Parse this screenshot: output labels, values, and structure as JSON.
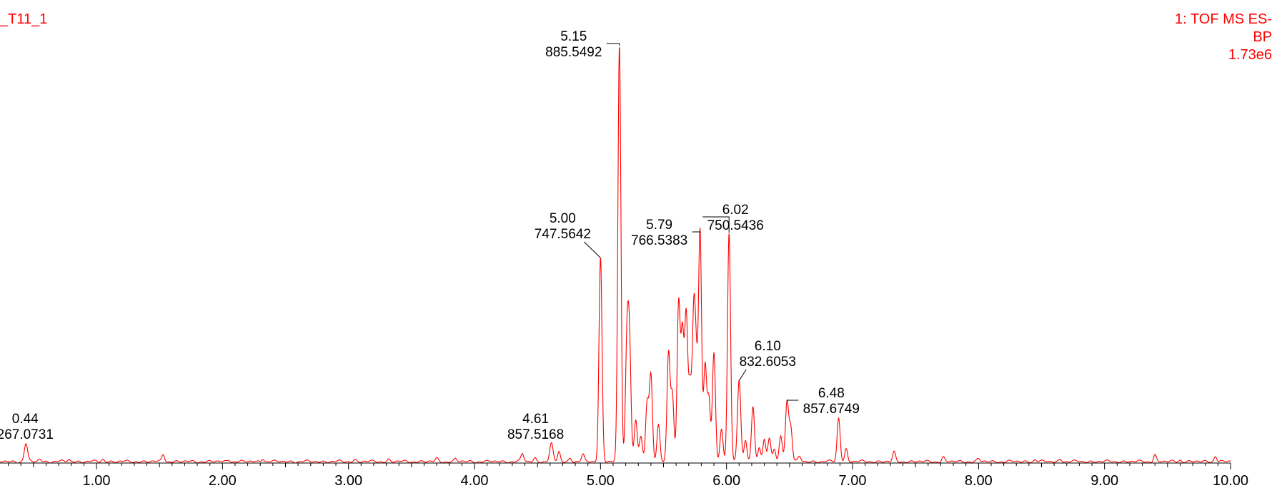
{
  "colors": {
    "trace": "#ff0000",
    "axis": "#000000",
    "header": "#ff0000"
  },
  "header": {
    "sample_name": "_T11_1",
    "detector": "1: TOF MS ES-",
    "mode": "BP",
    "intensity": "1.73e6"
  },
  "chart_data": {
    "type": "line",
    "xlim": [
      0,
      10.0
    ],
    "ylim": [
      0,
      100
    ],
    "x_ticks": [
      "1.00",
      "2.00",
      "3.00",
      "4.00",
      "5.00",
      "6.00",
      "7.00",
      "8.00",
      "9.00",
      "10.00"
    ],
    "peaks": [
      {
        "rt": "0.44",
        "mz": "267.0731",
        "x": 0.44,
        "y": 4.3
      },
      {
        "rt": "4.61",
        "mz": "857.5168",
        "x": 4.61,
        "y": 4.2
      },
      {
        "rt": "5.00",
        "mz": "747.5642",
        "x": 5.0,
        "y": 49
      },
      {
        "rt": "5.15",
        "mz": "885.5492",
        "x": 5.15,
        "y": 100
      },
      {
        "rt": "5.79",
        "mz": "766.5383",
        "x": 5.79,
        "y": 55
      },
      {
        "rt": "6.02",
        "mz": "750.5436",
        "x": 6.02,
        "y": 55
      },
      {
        "rt": "6.10",
        "mz": "832.6053",
        "x": 6.1,
        "y": 19.5
      },
      {
        "rt": "6.48",
        "mz": "857.6749",
        "x": 6.48,
        "y": 14.5
      }
    ],
    "unlabeled_peaks": [
      {
        "x": 0.55,
        "y": 0.6
      },
      {
        "x": 0.78,
        "y": 0.5
      },
      {
        "x": 1.05,
        "y": 0.6
      },
      {
        "x": 1.53,
        "y": 1.8
      },
      {
        "x": 2.05,
        "y": 0.5
      },
      {
        "x": 2.32,
        "y": 0.8
      },
      {
        "x": 3.05,
        "y": 0.5
      },
      {
        "x": 3.32,
        "y": 0.5
      },
      {
        "x": 3.7,
        "y": 0.7
      },
      {
        "x": 3.85,
        "y": 0.6
      },
      {
        "x": 4.38,
        "y": 1.9
      },
      {
        "x": 4.48,
        "y": 0.8
      },
      {
        "x": 4.67,
        "y": 2.4
      },
      {
        "x": 4.76,
        "y": 0.8
      },
      {
        "x": 4.86,
        "y": 1.6
      },
      {
        "x": 5.21,
        "y": 28
      },
      {
        "x": 5.23,
        "y": 27
      },
      {
        "x": 5.28,
        "y": 10
      },
      {
        "x": 5.32,
        "y": 6
      },
      {
        "x": 5.37,
        "y": 14
      },
      {
        "x": 5.4,
        "y": 20.5
      },
      {
        "x": 5.46,
        "y": 9
      },
      {
        "x": 5.54,
        "y": 26
      },
      {
        "x": 5.57,
        "y": 16
      },
      {
        "x": 5.62,
        "y": 38
      },
      {
        "x": 5.65,
        "y": 30
      },
      {
        "x": 5.68,
        "y": 35
      },
      {
        "x": 5.71,
        "y": 18
      },
      {
        "x": 5.74,
        "y": 34
      },
      {
        "x": 5.76,
        "y": 20
      },
      {
        "x": 5.83,
        "y": 23
      },
      {
        "x": 5.86,
        "y": 15
      },
      {
        "x": 5.9,
        "y": 26
      },
      {
        "x": 5.96,
        "y": 8
      },
      {
        "x": 6.15,
        "y": 5
      },
      {
        "x": 6.21,
        "y": 13.5
      },
      {
        "x": 6.26,
        "y": 3.5
      },
      {
        "x": 6.3,
        "y": 5
      },
      {
        "x": 6.34,
        "y": 5.7
      },
      {
        "x": 6.38,
        "y": 3
      },
      {
        "x": 6.43,
        "y": 6
      },
      {
        "x": 6.51,
        "y": 8
      },
      {
        "x": 6.58,
        "y": 1.2
      },
      {
        "x": 6.89,
        "y": 10.5
      },
      {
        "x": 6.95,
        "y": 3
      },
      {
        "x": 7.33,
        "y": 2.2
      },
      {
        "x": 7.72,
        "y": 1.0
      },
      {
        "x": 8.0,
        "y": 0.6
      },
      {
        "x": 8.45,
        "y": 0.5
      },
      {
        "x": 8.65,
        "y": 0.6
      },
      {
        "x": 9.4,
        "y": 1.6
      },
      {
        "x": 9.6,
        "y": 0.4
      },
      {
        "x": 9.88,
        "y": 1.4
      }
    ]
  }
}
